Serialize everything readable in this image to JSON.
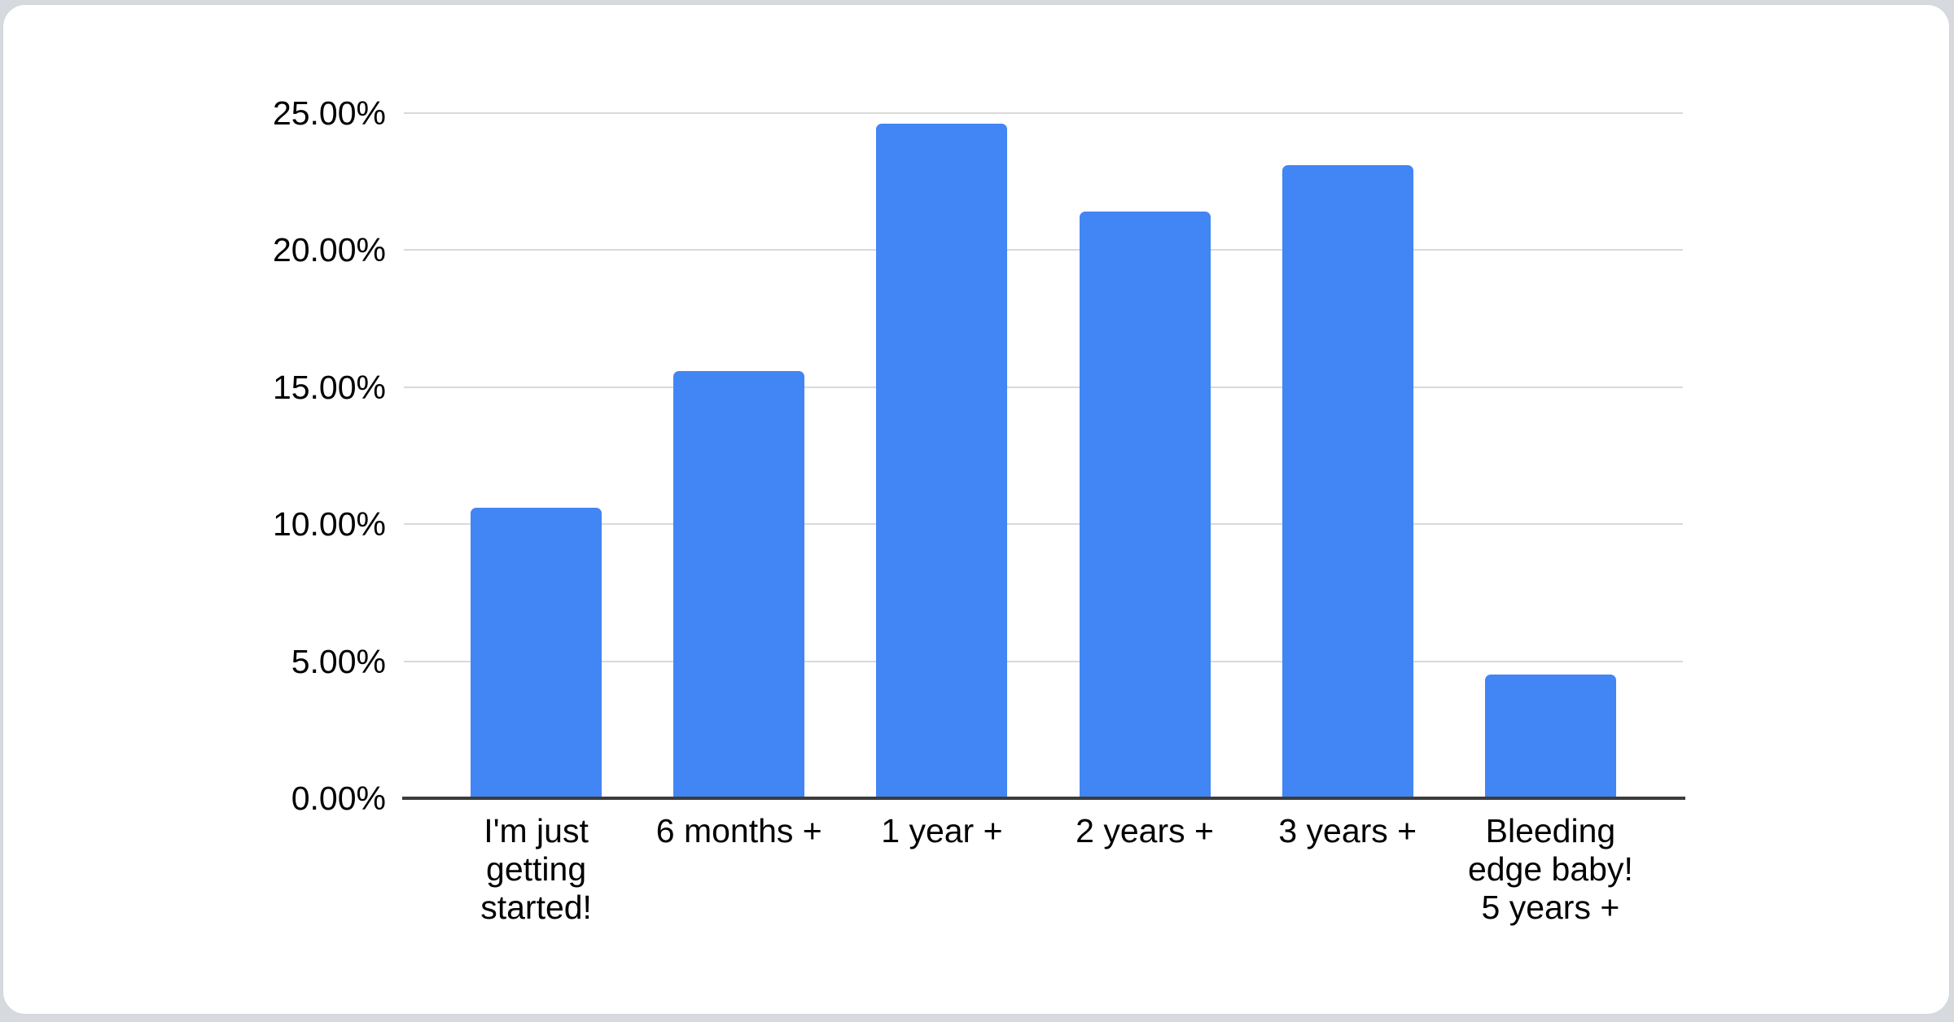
{
  "page": {
    "background_color": "#d6d9dd",
    "card_color": "#ffffff"
  },
  "chart_data": {
    "type": "bar",
    "title": "",
    "categories": [
      "I'm just\ngetting\nstarted!",
      "6 months +",
      "1 year +",
      "2 years +",
      "3 years +",
      "Bleeding\nedge baby!\n5 years +"
    ],
    "values": [
      10.6,
      15.6,
      24.6,
      21.4,
      23.1,
      4.5
    ],
    "value_unit": "percent",
    "yticks": [
      {
        "label": "0.00%",
        "value": 0
      },
      {
        "label": "5.00%",
        "value": 5
      },
      {
        "label": "10.00%",
        "value": 10
      },
      {
        "label": "15.00%",
        "value": 15
      },
      {
        "label": "20.00%",
        "value": 20
      },
      {
        "label": "25.00%",
        "value": 25
      }
    ],
    "ylim": [
      0,
      25
    ],
    "xlabel": "",
    "ylabel": "",
    "grid": true,
    "legend": "none",
    "bar_color": "#4285f4",
    "gridline_color": "#d9d9d9",
    "axis_line_color": "#3c3c3c",
    "text_color": "#000000"
  }
}
